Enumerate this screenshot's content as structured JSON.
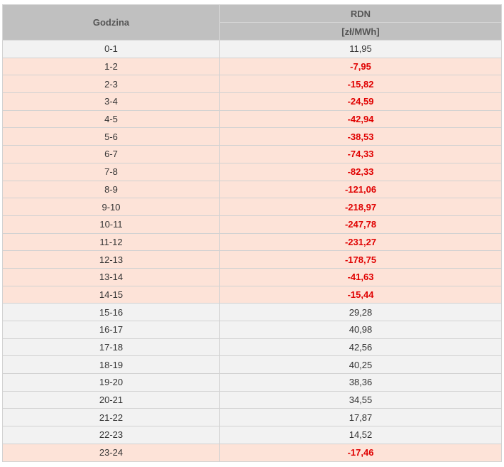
{
  "table": {
    "header": {
      "hour_label": "Godzina",
      "market_label": "RDN",
      "unit_label": "[zł/MWh]"
    },
    "rows": [
      {
        "hour": "0-1",
        "price": "11,95",
        "negative": false
      },
      {
        "hour": "1-2",
        "price": "-7,95",
        "negative": true
      },
      {
        "hour": "2-3",
        "price": "-15,82",
        "negative": true
      },
      {
        "hour": "3-4",
        "price": "-24,59",
        "negative": true
      },
      {
        "hour": "4-5",
        "price": "-42,94",
        "negative": true
      },
      {
        "hour": "5-6",
        "price": "-38,53",
        "negative": true
      },
      {
        "hour": "6-7",
        "price": "-74,33",
        "negative": true
      },
      {
        "hour": "7-8",
        "price": "-82,33",
        "negative": true
      },
      {
        "hour": "8-9",
        "price": "-121,06",
        "negative": true
      },
      {
        "hour": "9-10",
        "price": "-218,97",
        "negative": true
      },
      {
        "hour": "10-11",
        "price": "-247,78",
        "negative": true
      },
      {
        "hour": "11-12",
        "price": "-231,27",
        "negative": true
      },
      {
        "hour": "12-13",
        "price": "-178,75",
        "negative": true
      },
      {
        "hour": "13-14",
        "price": "-41,63",
        "negative": true
      },
      {
        "hour": "14-15",
        "price": "-15,44",
        "negative": true
      },
      {
        "hour": "15-16",
        "price": "29,28",
        "negative": false
      },
      {
        "hour": "16-17",
        "price": "40,98",
        "negative": false
      },
      {
        "hour": "17-18",
        "price": "42,56",
        "negative": false
      },
      {
        "hour": "18-19",
        "price": "40,25",
        "negative": false
      },
      {
        "hour": "19-20",
        "price": "38,36",
        "negative": false
      },
      {
        "hour": "20-21",
        "price": "34,55",
        "negative": false
      },
      {
        "hour": "21-22",
        "price": "17,87",
        "negative": false
      },
      {
        "hour": "22-23",
        "price": "14,52",
        "negative": false
      },
      {
        "hour": "23-24",
        "price": "-17,46",
        "negative": true
      }
    ]
  },
  "colors": {
    "header_bg": "#c0c0c0",
    "positive_row_bg": "#f2f2f2",
    "negative_row_bg": "#fde3d8",
    "negative_text": "#e00000"
  }
}
